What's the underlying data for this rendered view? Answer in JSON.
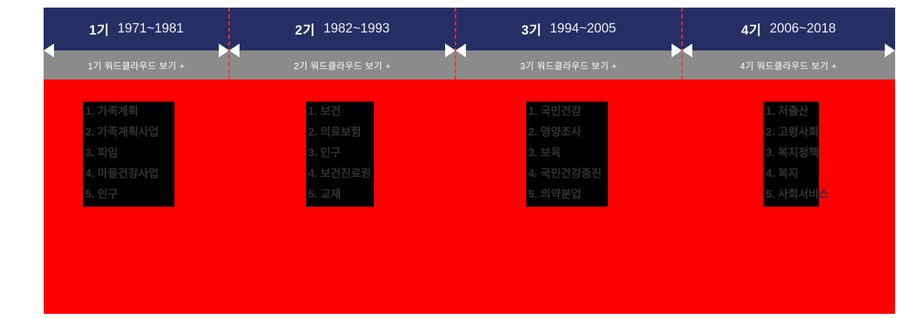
{
  "colors": {
    "header_navy": "#262e64",
    "button_gray": "#8b8b8b",
    "background_red": "#fe0000",
    "divider_dashed_red": "#e8352e",
    "keyword_box_black": "#000000",
    "keyword_text": "#333333",
    "arrow_white": "#ffffff"
  },
  "periods": [
    {
      "label": "1기",
      "range": "1971~1981",
      "wordcloud_button": "1기 워드클라우드 보기 +",
      "keywords": [
        "1. 가족계획",
        "2. 가족계획사업",
        "3. 피임",
        "4. 마을건강사업",
        "5. 인구"
      ]
    },
    {
      "label": "2기",
      "range": "1982~1993",
      "wordcloud_button": "2기 워드클라우드 보기 +",
      "keywords": [
        "1. 보건",
        "2. 의료보험",
        "3. 인구",
        "4. 보건진료원",
        "5. 교재"
      ]
    },
    {
      "label": "3기",
      "range": "1994~2005",
      "wordcloud_button": "3기 워드클라우드 보기 +",
      "keywords": [
        "1. 국민건강",
        "2. 영양조사",
        "3. 보육",
        "4. 국민건강증진",
        "5. 의약분업"
      ]
    },
    {
      "label": "4기",
      "range": "2006~2018",
      "wordcloud_button": "4기 워드클라우드 보기 +",
      "keywords": [
        "1. 저출산",
        "2. 고령사회",
        "3. 복지정책",
        "4. 복지",
        "5. 사회서비스"
      ]
    }
  ]
}
